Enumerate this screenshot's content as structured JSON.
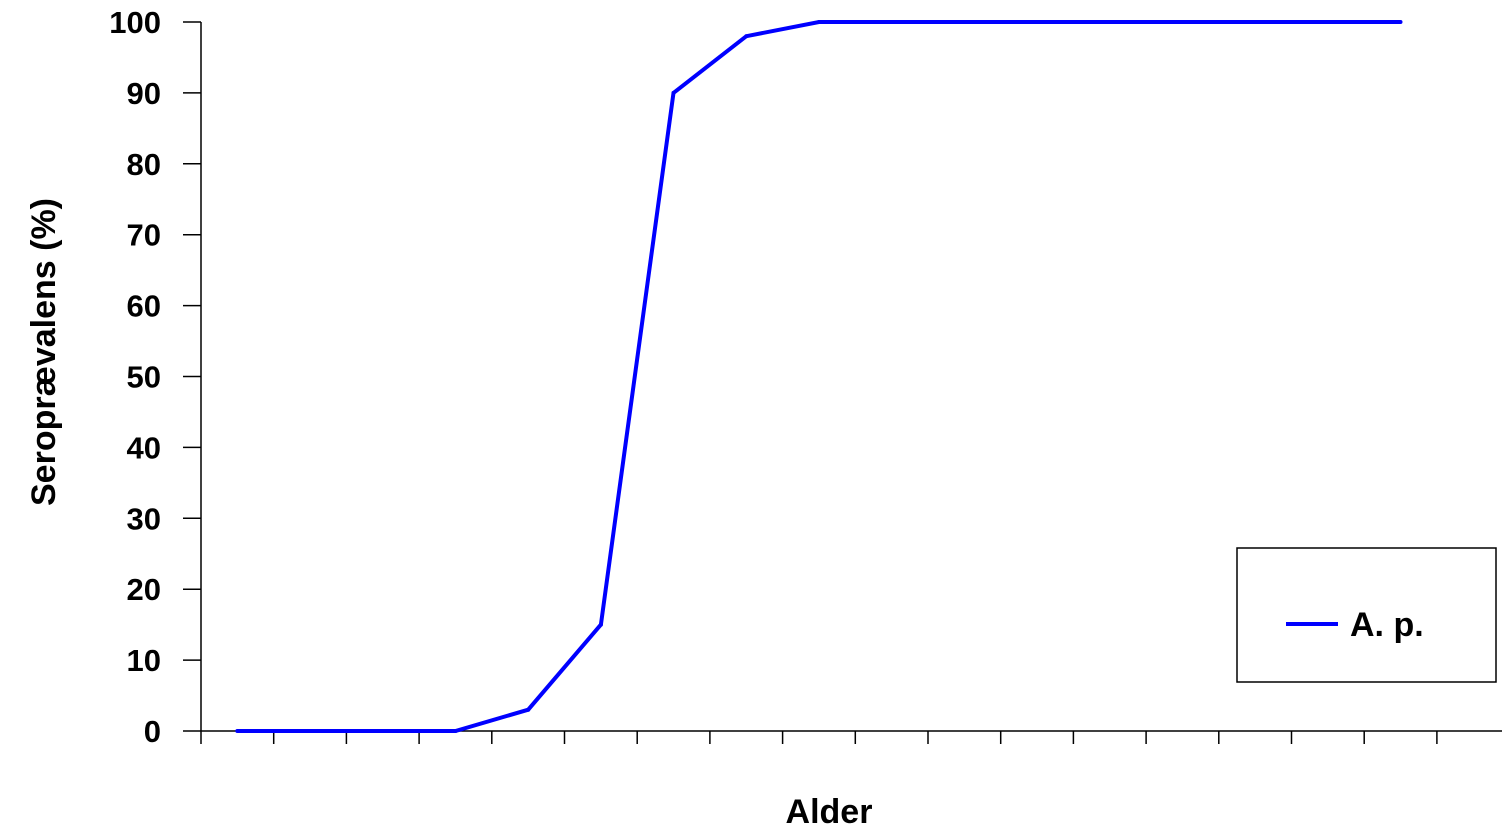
{
  "chart_data": {
    "type": "line",
    "xlabel": "Alder",
    "ylabel": "Seroprævalens (%)",
    "ylim": [
      0,
      100
    ],
    "yticks": [
      "0",
      "10",
      "20",
      "30",
      "40",
      "50",
      "60",
      "70",
      "80",
      "90",
      "100"
    ],
    "x_categories_count": 17,
    "x_tick_labels_shown": false,
    "grid": false,
    "legend": {
      "position": "bottom-right",
      "entries": [
        "A. p."
      ]
    },
    "series": [
      {
        "name": "A. p.",
        "color": "#0000ff",
        "values": [
          0,
          0,
          0,
          0,
          3,
          15,
          90,
          98,
          100,
          100,
          100,
          100,
          100,
          100,
          100,
          100,
          100
        ]
      }
    ]
  }
}
